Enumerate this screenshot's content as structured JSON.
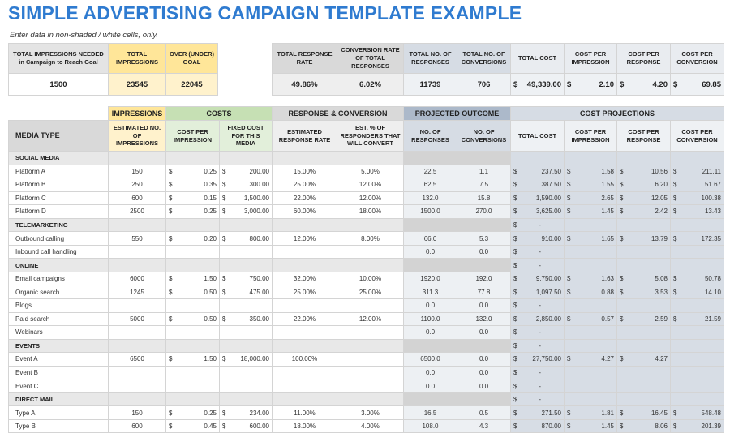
{
  "title": "SIMPLE ADVERTISING CAMPAIGN TEMPLATE EXAMPLE",
  "subtitle": "Enter data in non-shaded / white cells, only.",
  "colors": {
    "title": "#2f7bd0",
    "impressions": "#ffe699",
    "impressions_light": "#fff2cc",
    "costs": "#c6e0b4",
    "costs_light": "#e2efda",
    "response": "#d9d9d9",
    "response_light": "#eeeeee",
    "projected": "#acb9ca",
    "projected_light": "#d6dce4",
    "cost_proj": "#d6dce4"
  },
  "summary_left": {
    "headers": [
      "TOTAL IMPRESSIONS NEEDED in Campaign to Reach Goal",
      "TOTAL IMPRESSIONS",
      "OVER (UNDER) GOAL"
    ],
    "values": [
      "1500",
      "23545",
      "22045"
    ]
  },
  "summary_right": {
    "headers": [
      "TOTAL RESPONSE RATE",
      "CONVERSION RATE OF TOTAL RESPONSES",
      "TOTAL NO. OF RESPONSES",
      "TOTAL NO. OF CONVERSIONS",
      "TOTAL COST",
      "COST PER IMPRESSION",
      "COST PER RESPONSE",
      "COST PER CONVERSION"
    ],
    "values": [
      "49.86%",
      "6.02%",
      "11739",
      "706",
      "49,339.00",
      "2.10",
      "4.20",
      "69.85"
    ]
  },
  "groups": [
    "IMPRESSIONS",
    "COSTS",
    "RESPONSE & CONVERSION",
    "PROJECTED OUTCOME",
    "COST PROJECTIONS"
  ],
  "columns": [
    "MEDIA TYPE",
    "ESTIMATED NO. OF IMPRESSIONS",
    "COST PER IMPRESSION",
    "FIXED COST FOR THIS MEDIA",
    "ESTIMATED RESPONSE RATE",
    "EST. % OF RESPONDERS THAT WILL CONVERT",
    "NO. OF RESPONSES",
    "NO. OF CONVERSIONS",
    "TOTAL COST",
    "COST PER IMPRESSION",
    "COST PER RESPONSE",
    "COST PER CONVERSION"
  ],
  "currency": "$",
  "rows": [
    {
      "cat": "SOCIAL MEDIA"
    },
    {
      "v": [
        "Platform A",
        "150",
        "0.25",
        "200.00",
        "15.00%",
        "5.00%",
        "22.5",
        "1.1",
        "237.50",
        "1.58",
        "10.56",
        "211.11"
      ]
    },
    {
      "v": [
        "Platform B",
        "250",
        "0.35",
        "300.00",
        "25.00%",
        "12.00%",
        "62.5",
        "7.5",
        "387.50",
        "1.55",
        "6.20",
        "51.67"
      ]
    },
    {
      "v": [
        "Platform C",
        "600",
        "0.15",
        "1,500.00",
        "22.00%",
        "12.00%",
        "132.0",
        "15.8",
        "1,590.00",
        "2.65",
        "12.05",
        "100.38"
      ]
    },
    {
      "v": [
        "Platform D",
        "2500",
        "0.25",
        "3,000.00",
        "60.00%",
        "18.00%",
        "1500.0",
        "270.0",
        "3,625.00",
        "1.45",
        "2.42",
        "13.43"
      ]
    },
    {
      "cat": "TELEMARKETING",
      "tc": "-"
    },
    {
      "v": [
        "Outbound calling",
        "550",
        "0.20",
        "800.00",
        "12.00%",
        "8.00%",
        "66.0",
        "5.3",
        "910.00",
        "1.65",
        "13.79",
        "172.35"
      ]
    },
    {
      "v": [
        "Inbound call handling",
        "",
        "",
        "",
        "",
        "",
        "0.0",
        "0.0",
        "-",
        "",
        "",
        ""
      ]
    },
    {
      "cat": "ONLINE",
      "tc": "-"
    },
    {
      "v": [
        "Email campaigns",
        "6000",
        "1.50",
        "750.00",
        "32.00%",
        "10.00%",
        "1920.0",
        "192.0",
        "9,750.00",
        "1.63",
        "5.08",
        "50.78"
      ]
    },
    {
      "v": [
        "Organic search",
        "1245",
        "0.50",
        "475.00",
        "25.00%",
        "25.00%",
        "311.3",
        "77.8",
        "1,097.50",
        "0.88",
        "3.53",
        "14.10"
      ]
    },
    {
      "v": [
        "Blogs",
        "",
        "",
        "",
        "",
        "",
        "0.0",
        "0.0",
        "-",
        "",
        "",
        ""
      ]
    },
    {
      "v": [
        "Paid search",
        "5000",
        "0.50",
        "350.00",
        "22.00%",
        "12.00%",
        "1100.0",
        "132.0",
        "2,850.00",
        "0.57",
        "2.59",
        "21.59"
      ]
    },
    {
      "v": [
        "Webinars",
        "",
        "",
        "",
        "",
        "",
        "0.0",
        "0.0",
        "-",
        "",
        "",
        ""
      ]
    },
    {
      "cat": "EVENTS",
      "tc": "-"
    },
    {
      "v": [
        "Event A",
        "6500",
        "1.50",
        "18,000.00",
        "100.00%",
        "",
        "6500.0",
        "0.0",
        "27,750.00",
        "4.27",
        "4.27",
        ""
      ]
    },
    {
      "v": [
        "Event B",
        "",
        "",
        "",
        "",
        "",
        "0.0",
        "0.0",
        "-",
        "",
        "",
        ""
      ]
    },
    {
      "v": [
        "Event C",
        "",
        "",
        "",
        "",
        "",
        "0.0",
        "0.0",
        "-",
        "",
        "",
        ""
      ]
    },
    {
      "cat": "DIRECT MAIL",
      "tc": "-"
    },
    {
      "v": [
        "Type A",
        "150",
        "0.25",
        "234.00",
        "11.00%",
        "3.00%",
        "16.5",
        "0.5",
        "271.50",
        "1.81",
        "16.45",
        "548.48"
      ]
    },
    {
      "v": [
        "Type B",
        "600",
        "0.45",
        "600.00",
        "18.00%",
        "4.00%",
        "108.0",
        "4.3",
        "870.00",
        "1.45",
        "8.06",
        "201.39"
      ]
    }
  ]
}
